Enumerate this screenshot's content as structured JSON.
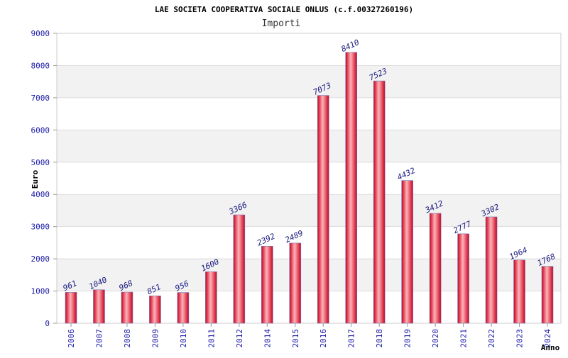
{
  "chart_data": {
    "type": "bar",
    "title": "LAE SOCIETA COOPERATIVA SOCIALE ONLUS (c.f.00327260196)",
    "subtitle": "Importi",
    "ylabel": "Euro",
    "xlabel": "Anno",
    "ylim": [
      0,
      9000
    ],
    "yticks": [
      0,
      1000,
      2000,
      3000,
      4000,
      5000,
      6000,
      7000,
      8000,
      9000
    ],
    "grid": true,
    "categories": [
      "2006",
      "2007",
      "2008",
      "2009",
      "2010",
      "2011",
      "2012",
      "2014",
      "2015",
      "2016",
      "2017",
      "2018",
      "2019",
      "2020",
      "2021",
      "2022",
      "2023",
      "2024"
    ],
    "values": [
      961,
      1040,
      968,
      851,
      956,
      1600,
      3366,
      2392,
      2489,
      7073,
      8410,
      7523,
      4432,
      3412,
      2777,
      3302,
      1964,
      1768
    ],
    "colors": {
      "bar_dark": "#c8001e",
      "bar_light": "#ffb3b8",
      "bar_edge": "#7a7ab8",
      "band": "#f2f2f2",
      "grid": "#dddddd",
      "tick_text": "#1a1aa6"
    }
  }
}
